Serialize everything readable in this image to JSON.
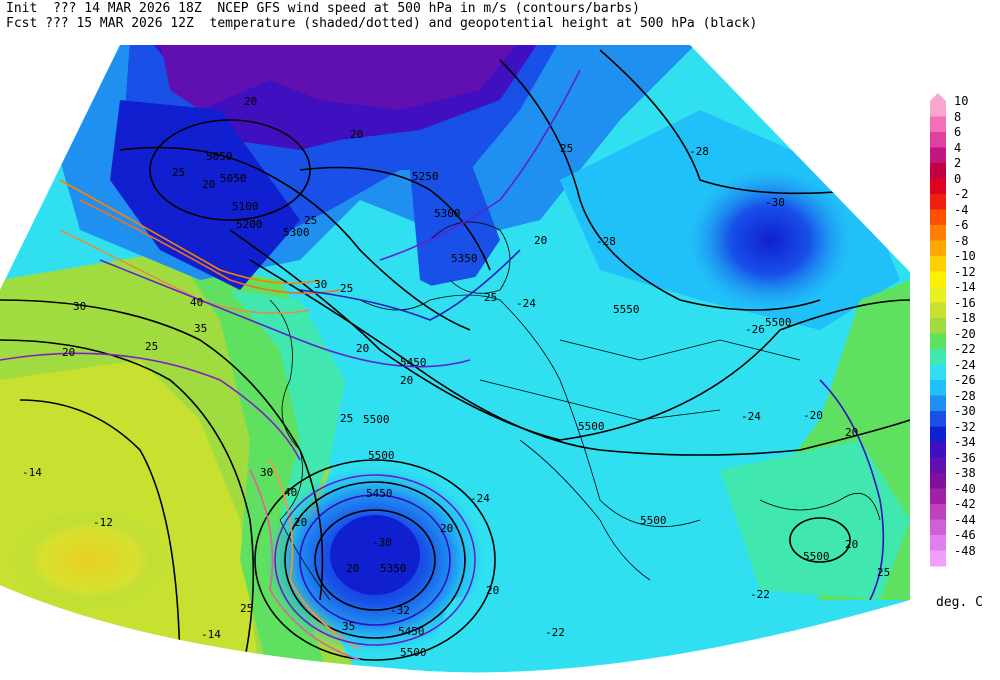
{
  "header": {
    "line1": "Init  ??? 14 MAR 2026 18Z  NCEP GFS wind speed at 500 hPa in m/s (contours/barbs)",
    "line2": "Fcst ??? 15 MAR 2026 12Z  temperature (shaded/dotted) and geopotential height at 500 hPa (black)"
  },
  "legend": {
    "units": "deg. C",
    "entries": [
      {
        "label": "10",
        "color": "#f7a6d0"
      },
      {
        "label": "8",
        "color": "#f370b8"
      },
      {
        "label": "6",
        "color": "#e040a0"
      },
      {
        "label": "4",
        "color": "#c01880"
      },
      {
        "label": "2",
        "color": "#c00040"
      },
      {
        "label": "0",
        "color": "#e00020"
      },
      {
        "label": "-2",
        "color": "#f02010"
      },
      {
        "label": "-4",
        "color": "#ff5000"
      },
      {
        "label": "-6",
        "color": "#ff8000"
      },
      {
        "label": "-8",
        "color": "#ffa800"
      },
      {
        "label": "-10",
        "color": "#ffd000"
      },
      {
        "label": "-12",
        "color": "#fff000"
      },
      {
        "label": "-14",
        "color": "#e8f020"
      },
      {
        "label": "-16",
        "color": "#c8e030"
      },
      {
        "label": "-18",
        "color": "#a0dc40"
      },
      {
        "label": "-20",
        "color": "#60e060"
      },
      {
        "label": "-22",
        "color": "#40e8b0"
      },
      {
        "label": "-24",
        "color": "#30e0f0"
      },
      {
        "label": "-26",
        "color": "#20c0f8"
      },
      {
        "label": "-28",
        "color": "#2090f0"
      },
      {
        "label": "-30",
        "color": "#1850e8"
      },
      {
        "label": "-32",
        "color": "#1020d0"
      },
      {
        "label": "-34",
        "color": "#4010c0"
      },
      {
        "label": "-36",
        "color": "#6010b0"
      },
      {
        "label": "-38",
        "color": "#8010a0"
      },
      {
        "label": "-40",
        "color": "#a020a8"
      },
      {
        "label": "-42",
        "color": "#c040c0"
      },
      {
        "label": "-44",
        "color": "#d060d8"
      },
      {
        "label": "-46",
        "color": "#e080f0"
      },
      {
        "label": "-48",
        "color": "#f0a0f8"
      }
    ]
  },
  "map_labels": {
    "heights": [
      "5050",
      "5100",
      "5200",
      "5250",
      "5300",
      "5350",
      "5400",
      "5450",
      "5500",
      "5550"
    ],
    "wind": [
      "20",
      "25",
      "30",
      "35",
      "40"
    ],
    "temps": [
      "-12",
      "-14",
      "-20",
      "-22",
      "-24",
      "-26",
      "-28",
      "-30",
      "-32"
    ]
  }
}
